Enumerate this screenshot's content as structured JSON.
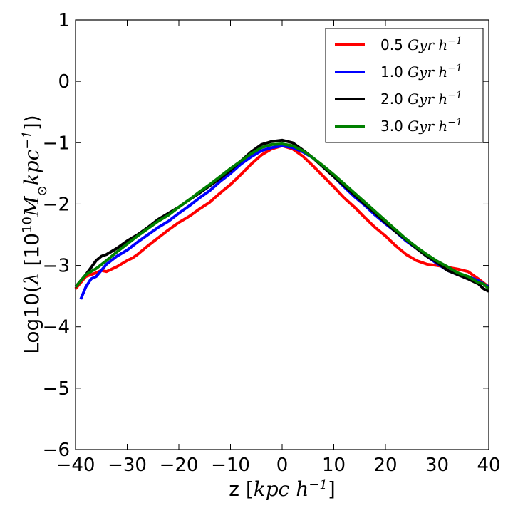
{
  "chart_data": {
    "type": "line",
    "title": "",
    "xlabel": "z [kpc h^-1]",
    "ylabel": "Log10(λ [10^10 M⊙ kpc^-1])",
    "xlim": [
      -40,
      40
    ],
    "ylim": [
      -6,
      1
    ],
    "xticks": [
      -40,
      -30,
      -20,
      -10,
      0,
      10,
      20,
      30,
      40
    ],
    "yticks": [
      1,
      0,
      -1,
      -2,
      -3,
      -4,
      -5,
      -6
    ],
    "xtick_labels": [
      "−40",
      "−30",
      "−20",
      "−10",
      "0",
      "10",
      "20",
      "30",
      "40"
    ],
    "ytick_labels": [
      "1",
      "0",
      "−1",
      "−2",
      "−3",
      "−4",
      "−5",
      "−6"
    ],
    "legend_position": "top-right",
    "series": [
      {
        "name": "0.5 Gyr h^-1",
        "legend_value": "0.5",
        "color": "#ff0000",
        "x": [
          -40,
          -38,
          -36,
          -35,
          -34,
          -32,
          -30,
          -29,
          -28,
          -26,
          -24,
          -22,
          -20,
          -18,
          -16,
          -14,
          -12,
          -10,
          -8,
          -6,
          -4,
          -2,
          0,
          2,
          4,
          6,
          8,
          10,
          12,
          14,
          16,
          18,
          20,
          22,
          24,
          26,
          28,
          30,
          32,
          34,
          36,
          38,
          40
        ],
        "y": [
          -3.38,
          -3.18,
          -3.12,
          -3.08,
          -3.1,
          -3.02,
          -2.92,
          -2.88,
          -2.82,
          -2.68,
          -2.55,
          -2.42,
          -2.3,
          -2.2,
          -2.08,
          -1.97,
          -1.82,
          -1.68,
          -1.52,
          -1.35,
          -1.2,
          -1.1,
          -1.05,
          -1.1,
          -1.22,
          -1.38,
          -1.55,
          -1.72,
          -1.9,
          -2.05,
          -2.22,
          -2.38,
          -2.52,
          -2.68,
          -2.82,
          -2.92,
          -2.98,
          -3.0,
          -3.03,
          -3.06,
          -3.1,
          -3.22,
          -3.35
        ]
      },
      {
        "name": "1.0 Gyr h^-1",
        "legend_value": "1.0",
        "color": "#0000ff",
        "x": [
          -39,
          -38,
          -37,
          -36,
          -34,
          -32,
          -30,
          -28,
          -26,
          -24,
          -22,
          -20,
          -18,
          -16,
          -14,
          -12,
          -10,
          -8,
          -6,
          -4,
          -2,
          0,
          2,
          4,
          6,
          8,
          10,
          12,
          14,
          16,
          18,
          20,
          22,
          24,
          26,
          28,
          30,
          32,
          34,
          36,
          38,
          40
        ],
        "y": [
          -3.55,
          -3.35,
          -3.22,
          -3.18,
          -2.98,
          -2.85,
          -2.75,
          -2.62,
          -2.5,
          -2.38,
          -2.28,
          -2.15,
          -2.03,
          -1.9,
          -1.78,
          -1.63,
          -1.5,
          -1.35,
          -1.23,
          -1.13,
          -1.08,
          -1.05,
          -1.08,
          -1.15,
          -1.25,
          -1.4,
          -1.55,
          -1.72,
          -1.88,
          -2.02,
          -2.18,
          -2.32,
          -2.45,
          -2.6,
          -2.72,
          -2.85,
          -2.97,
          -3.08,
          -3.15,
          -3.18,
          -3.25,
          -3.35
        ]
      },
      {
        "name": "2.0 Gyr h^-1",
        "legend_value": "2.0",
        "color": "#000000",
        "x": [
          -40,
          -38,
          -36,
          -35,
          -34,
          -32,
          -30,
          -28,
          -26,
          -24,
          -22,
          -20,
          -18,
          -16,
          -14,
          -12,
          -10,
          -8,
          -6,
          -4,
          -2,
          0,
          2,
          4,
          6,
          8,
          10,
          12,
          14,
          16,
          18,
          20,
          22,
          24,
          26,
          28,
          30,
          32,
          34,
          36,
          38,
          39,
          40
        ],
        "y": [
          -3.35,
          -3.15,
          -2.92,
          -2.85,
          -2.82,
          -2.72,
          -2.6,
          -2.5,
          -2.38,
          -2.25,
          -2.15,
          -2.05,
          -1.93,
          -1.82,
          -1.7,
          -1.58,
          -1.45,
          -1.3,
          -1.15,
          -1.03,
          -0.98,
          -0.96,
          -1.0,
          -1.12,
          -1.25,
          -1.4,
          -1.55,
          -1.7,
          -1.85,
          -2.0,
          -2.15,
          -2.3,
          -2.45,
          -2.58,
          -2.72,
          -2.85,
          -2.95,
          -3.08,
          -3.15,
          -3.22,
          -3.3,
          -3.38,
          -3.42
        ]
      },
      {
        "name": "3.0 Gyr h^-1",
        "legend_value": "3.0",
        "color": "#008000",
        "x": [
          -40,
          -38,
          -36,
          -34,
          -32,
          -30,
          -28,
          -26,
          -24,
          -22,
          -20,
          -18,
          -16,
          -14,
          -12,
          -10,
          -8,
          -6,
          -4,
          -2,
          0,
          2,
          4,
          6,
          8,
          10,
          12,
          14,
          16,
          18,
          20,
          22,
          24,
          26,
          28,
          30,
          32,
          34,
          36,
          38,
          39,
          40
        ],
        "y": [
          -3.35,
          -3.15,
          -3.05,
          -2.92,
          -2.78,
          -2.65,
          -2.52,
          -2.4,
          -2.28,
          -2.18,
          -2.05,
          -1.93,
          -1.8,
          -1.68,
          -1.55,
          -1.42,
          -1.3,
          -1.18,
          -1.08,
          -1.03,
          -1.02,
          -1.05,
          -1.13,
          -1.25,
          -1.38,
          -1.52,
          -1.67,
          -1.82,
          -1.97,
          -2.12,
          -2.27,
          -2.42,
          -2.57,
          -2.7,
          -2.82,
          -2.93,
          -3.02,
          -3.12,
          -3.18,
          -3.28,
          -3.3,
          -3.38
        ]
      }
    ]
  },
  "legend": {
    "unit_label": "Gyr h"
  }
}
